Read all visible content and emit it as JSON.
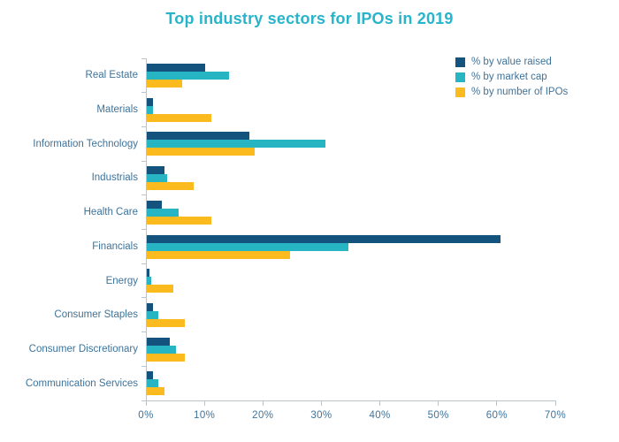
{
  "chart_data": {
    "type": "bar",
    "orientation": "horizontal-grouped",
    "title": "Top industry sectors for IPOs in 2019",
    "categories": [
      "Real Estate",
      "Materials",
      "Information Technology",
      "Industrials",
      "Health Care",
      "Financials",
      "Energy",
      "Consumer Staples",
      "Consumer Discretionary",
      "Communication Services"
    ],
    "series": [
      {
        "name": "% by value raised",
        "color": "#14537D",
        "values": [
          10,
          1,
          17.5,
          3,
          2.5,
          60.5,
          0.4,
          1,
          4,
          1
        ]
      },
      {
        "name": "% by market cap",
        "color": "#27B5C3",
        "values": [
          14,
          1,
          30.5,
          3.5,
          5.5,
          34.5,
          0.8,
          2,
          5,
          2
        ]
      },
      {
        "name": "% by number of IPOs",
        "color": "#FBBB1F",
        "values": [
          6,
          11,
          18.5,
          8,
          11,
          24.5,
          4.5,
          6.5,
          6.5,
          3
        ]
      }
    ],
    "x_ticks": [
      "0%",
      "10%",
      "20%",
      "30%",
      "40%",
      "50%",
      "60%",
      "70%"
    ],
    "xlim": [
      0,
      70
    ],
    "xlabel": "",
    "ylabel": "",
    "grid": false,
    "legend_position": "top-right"
  },
  "colors": {
    "title": "#28B4CB",
    "text": "#3E739A",
    "axis": "#B9C4CC",
    "background": "#FFFFFF"
  }
}
